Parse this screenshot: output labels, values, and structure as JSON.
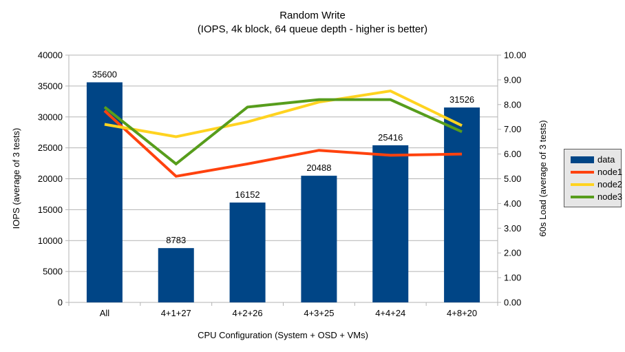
{
  "chart_data": {
    "type": "bar+line",
    "title": "Random Write",
    "subtitle": "(IOPS, 4k block, 64 queue depth - higher is better)",
    "categories": [
      "All",
      "4+1+27",
      "4+2+26",
      "4+3+25",
      "4+4+24",
      "4+8+20"
    ],
    "bar_series": {
      "name": "data",
      "axis": "left",
      "values": [
        35600,
        8783,
        16152,
        20488,
        25416,
        31526
      ],
      "color": "#004586"
    },
    "line_series": [
      {
        "name": "node1",
        "axis": "right",
        "color": "#ff420e",
        "values": [
          7.75,
          5.1,
          5.6,
          6.15,
          5.95,
          6.0
        ]
      },
      {
        "name": "node2",
        "axis": "right",
        "color": "#ffd320",
        "values": [
          7.2,
          6.7,
          7.3,
          8.1,
          8.55,
          7.15
        ]
      },
      {
        "name": "node3",
        "axis": "right",
        "color": "#579d1c",
        "values": [
          7.9,
          5.6,
          7.9,
          8.2,
          8.2,
          6.9
        ]
      }
    ],
    "left_axis": {
      "label": "IOPS (average of 3 tests)",
      "min": 0,
      "max": 40000,
      "step": 5000,
      "ticks": [
        "0",
        "5000",
        "10000",
        "15000",
        "20000",
        "25000",
        "30000",
        "35000",
        "40000"
      ]
    },
    "right_axis": {
      "label": "60s Load (average of 3 tests)",
      "min": 0,
      "max": 10,
      "step": 1,
      "ticks": [
        "0.00",
        "1.00",
        "2.00",
        "3.00",
        "4.00",
        "5.00",
        "6.00",
        "7.00",
        "8.00",
        "9.00",
        "10.00"
      ]
    },
    "x_axis": {
      "label": "CPU Configuration (System + OSD + VMs)"
    },
    "legend": {
      "position": "right",
      "entries": [
        "data",
        "node1",
        "node2",
        "node3"
      ]
    },
    "grid": true,
    "colors": {
      "background": "#ffffff",
      "grid": "#b3b3b3",
      "axis": "#b3b3b3",
      "text": "#000000",
      "legend_bg": "#e6e6e6",
      "legend_border": "#5b5b5b"
    }
  }
}
